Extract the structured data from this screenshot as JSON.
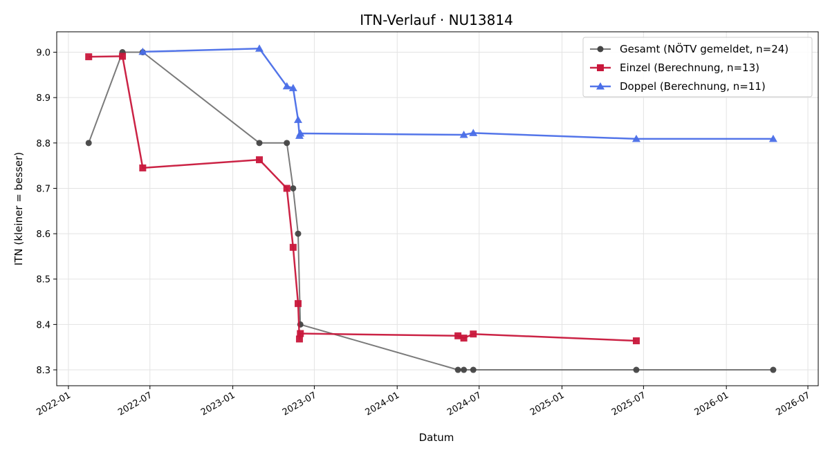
{
  "chart_data": {
    "type": "line",
    "title": "ITN-Verlauf · NU13814",
    "xlabel": "Datum",
    "ylabel": "ITN  (kleiner = besser)",
    "x_is_date": true,
    "xlim": [
      "2021-12-06",
      "2026-07-24"
    ],
    "ylim": [
      8.265,
      9.045
    ],
    "x_ticks": [
      "2022-01-01",
      "2022-07-01",
      "2023-01-01",
      "2023-07-01",
      "2024-01-01",
      "2024-07-01",
      "2025-01-01",
      "2025-07-01",
      "2026-01-01",
      "2026-07-01"
    ],
    "x_tick_labels": [
      "2022-01",
      "2022-07",
      "2023-01",
      "2023-07",
      "2024-01",
      "2024-07",
      "2025-01",
      "2025-07",
      "2026-01",
      "2026-07"
    ],
    "y_ticks": [
      8.3,
      8.4,
      8.5,
      8.6,
      8.7,
      8.8,
      8.9,
      9.0
    ],
    "y_tick_labels": [
      "8.3",
      "8.4",
      "8.5",
      "8.6",
      "8.7",
      "8.8",
      "8.9",
      "9.0"
    ],
    "grid": true,
    "legend_position": "top-right",
    "series": [
      {
        "name": "Gesamt (NÖTV gemeldet, n=24)",
        "color": "#555555",
        "marker": "circle",
        "points": [
          {
            "x": "2022-02-15",
            "y": 8.8
          },
          {
            "x": "2022-05-01",
            "y": 9.0
          },
          {
            "x": "2022-06-15",
            "y": 9.0
          },
          {
            "x": "2023-03-01",
            "y": 8.8
          },
          {
            "x": "2023-05-01",
            "y": 8.8
          },
          {
            "x": "2023-05-15",
            "y": 8.7
          },
          {
            "x": "2023-05-26",
            "y": 8.6
          },
          {
            "x": "2023-05-31",
            "y": 8.4
          },
          {
            "x": "2024-05-15",
            "y": 8.3
          },
          {
            "x": "2024-05-28",
            "y": 8.3
          },
          {
            "x": "2024-06-18",
            "y": 8.3
          },
          {
            "x": "2025-06-15",
            "y": 8.3
          },
          {
            "x": "2026-04-15",
            "y": 8.3
          }
        ]
      },
      {
        "name": "Einzel (Berechnung, n=13)",
        "color": "#c8173b",
        "marker": "square",
        "points": [
          {
            "x": "2022-02-15",
            "y": 8.99
          },
          {
            "x": "2022-05-01",
            "y": 8.991
          },
          {
            "x": "2022-06-15",
            "y": 8.745
          },
          {
            "x": "2023-03-01",
            "y": 8.763
          },
          {
            "x": "2023-05-01",
            "y": 8.7
          },
          {
            "x": "2023-05-15",
            "y": 8.57
          },
          {
            "x": "2023-05-26",
            "y": 8.446
          },
          {
            "x": "2023-05-29",
            "y": 8.368
          },
          {
            "x": "2023-05-31",
            "y": 8.38
          },
          {
            "x": "2024-05-15",
            "y": 8.375
          },
          {
            "x": "2024-05-28",
            "y": 8.37
          },
          {
            "x": "2024-06-18",
            "y": 8.379
          },
          {
            "x": "2025-06-15",
            "y": 8.364
          }
        ]
      },
      {
        "name": "Doppel (Berechnung, n=11)",
        "color": "#4a6ee8",
        "marker": "triangle",
        "points": [
          {
            "x": "2022-06-15",
            "y": 9.001
          },
          {
            "x": "2023-03-01",
            "y": 9.008
          },
          {
            "x": "2023-05-01",
            "y": 8.925
          },
          {
            "x": "2023-05-15",
            "y": 8.921
          },
          {
            "x": "2023-05-26",
            "y": 8.851
          },
          {
            "x": "2023-05-29",
            "y": 8.816
          },
          {
            "x": "2023-05-31",
            "y": 8.821
          },
          {
            "x": "2024-05-28",
            "y": 8.818
          },
          {
            "x": "2024-06-18",
            "y": 8.822
          },
          {
            "x": "2025-06-15",
            "y": 8.809
          },
          {
            "x": "2026-04-15",
            "y": 8.809
          }
        ]
      }
    ]
  }
}
